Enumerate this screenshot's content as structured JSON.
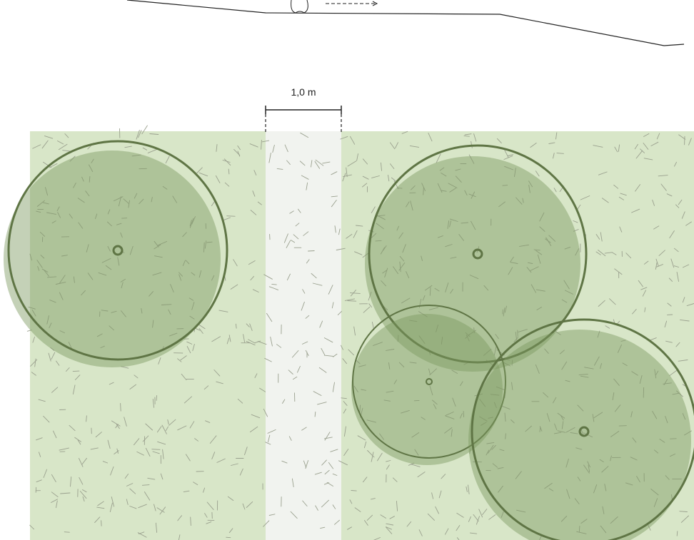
{
  "dimension": {
    "label": "1,0 m"
  },
  "colors": {
    "grass": "#d8e6c8",
    "path": "#f1f3ef",
    "canopy": "#8fa872",
    "canopy_edge": "#5f7545",
    "texture": "#9aa08e",
    "line": "#222222"
  },
  "trees": [
    {
      "name": "tree-left"
    },
    {
      "name": "tree-top-right"
    },
    {
      "name": "tree-small-center"
    },
    {
      "name": "tree-bottom-right"
    }
  ]
}
